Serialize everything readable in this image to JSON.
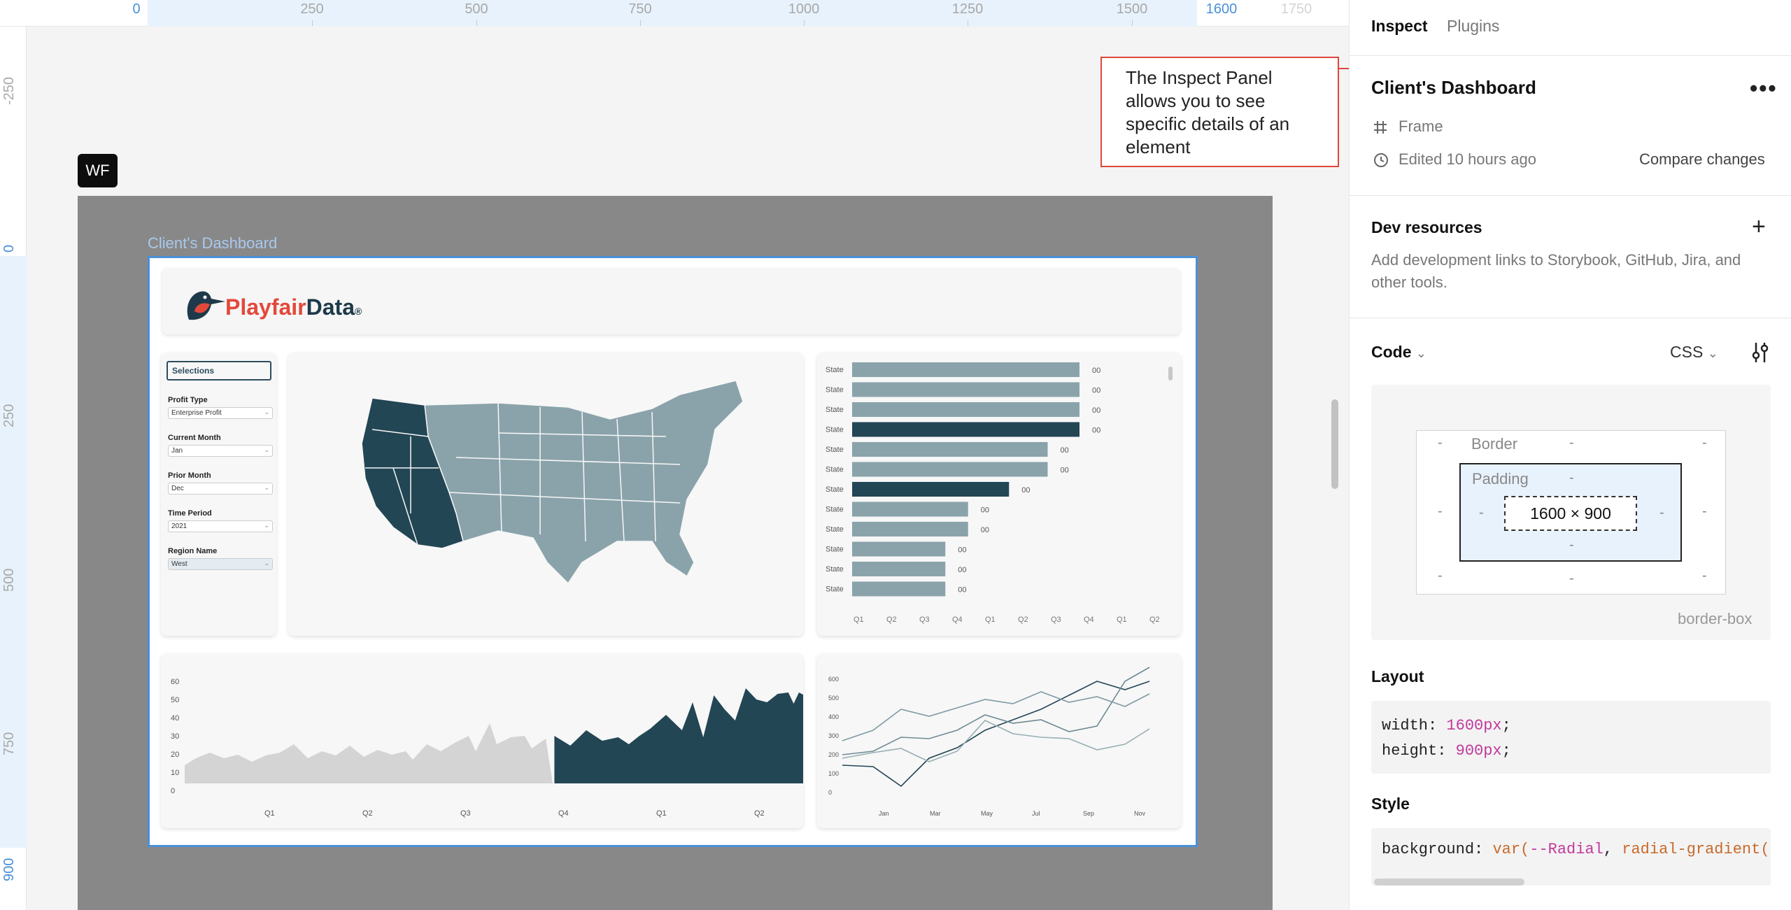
{
  "ruler": {
    "top_ticks": [
      "0",
      "250",
      "500",
      "750",
      "1000",
      "1250",
      "1500",
      "1600",
      "1750"
    ],
    "left_ticks": [
      "-250",
      "0",
      "250",
      "500",
      "750",
      "900"
    ]
  },
  "canvas": {
    "badge": "WF",
    "frame_label": "Client's Dashboard"
  },
  "dashboard": {
    "logo": {
      "part1": "Playfair",
      "part2": "Data",
      "mark": "®"
    },
    "selections": {
      "title": "Selections",
      "fields": [
        {
          "label": "Profit Type",
          "value": "Enterprise Profit"
        },
        {
          "label": "Current Month",
          "value": "Jan"
        },
        {
          "label": "Prior Month",
          "value": "Dec"
        },
        {
          "label": "Time Period",
          "value": "2021"
        },
        {
          "label": "Region Name",
          "value": "West"
        }
      ]
    },
    "bar_chart": {
      "row_label": "State",
      "value_label": "00",
      "values": [
        1.0,
        1.0,
        1.0,
        1.0,
        0.86,
        0.86,
        0.69,
        0.51,
        0.51,
        0.41,
        0.41,
        0.41
      ],
      "highlighted": [
        3,
        6
      ],
      "x_ticks": [
        "Q1",
        "Q2",
        "Q3",
        "Q4",
        "Q1",
        "Q2",
        "Q3",
        "Q4",
        "Q1",
        "Q2"
      ]
    },
    "area_chart": {
      "y_ticks": [
        "60",
        "50",
        "40",
        "30",
        "20",
        "10",
        "0"
      ],
      "x_ticks": [
        "Q1",
        "Q2",
        "Q3",
        "Q4",
        "Q1",
        "Q2"
      ]
    },
    "line_chart": {
      "y_ticks": [
        "600",
        "500",
        "400",
        "300",
        "200",
        "100",
        "0"
      ],
      "x_ticks": [
        "Jan",
        "Mar",
        "May",
        "Jul",
        "Sep",
        "Nov"
      ]
    }
  },
  "callout": {
    "text": "The Inspect Panel allows you to see specific details of an element"
  },
  "panel": {
    "tabs": [
      "Inspect",
      "Plugins"
    ],
    "frame_name": "Client's Dashboard",
    "frame_type": "Frame",
    "edited": "Edited 10 hours ago",
    "compare": "Compare changes",
    "dev_title": "Dev resources",
    "dev_desc_1": "Add development links to Storybook, GitHub, Jira, and",
    "dev_desc_2": "other tools.",
    "code_title": "Code",
    "code_lang": "CSS",
    "box": {
      "border": "Border",
      "padding": "Padding",
      "size": "1600 × 900",
      "dash": "-",
      "sizing": "border-box"
    },
    "layout_title": "Layout",
    "layout_lines": [
      {
        "prop": "width: ",
        "val": "1600px",
        "end": ";"
      },
      {
        "prop": "height: ",
        "val": "900px",
        "end": ";"
      }
    ],
    "style_title": "Style",
    "style_line": {
      "prop": "background: ",
      "fn": "var(",
      "var": "--Radial",
      "sep": ", ",
      "val": "radial-gradient("
    }
  },
  "colors": {
    "accent": "#4a90d9",
    "callout": "#e0463b",
    "dark_teal": "#234655",
    "muted_teal": "#8aa3ab"
  }
}
